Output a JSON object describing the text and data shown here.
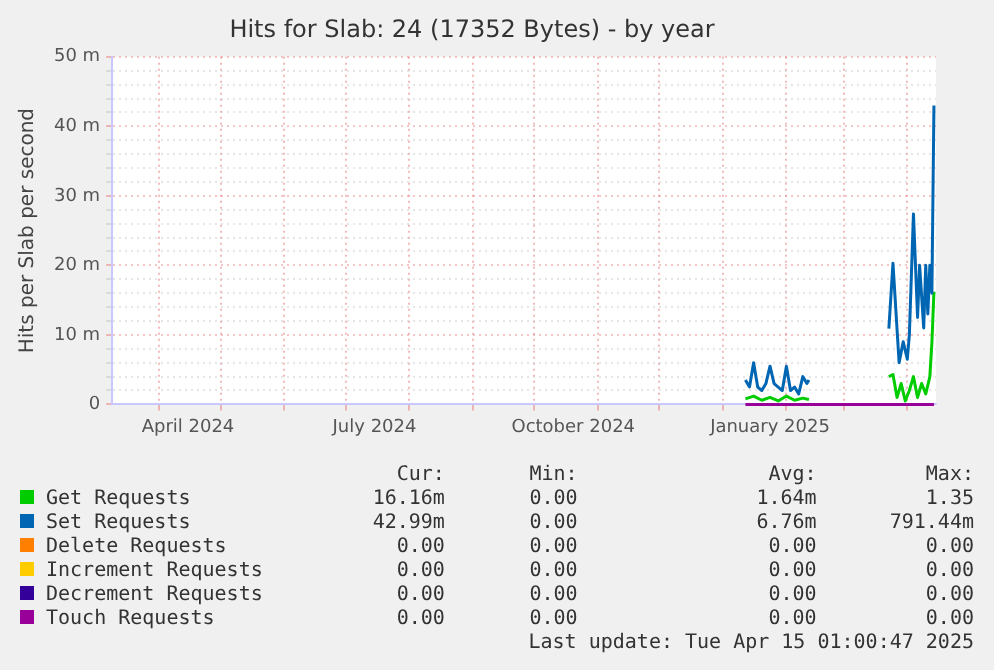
{
  "chart_data": {
    "type": "line",
    "title": "Hits for Slab: 24 (17352 Bytes) - by year",
    "ylabel": "Hits per Slab per second",
    "xlim": [
      "2024-03-09",
      "2025-04-15"
    ],
    "xticks": [
      {
        "value": "2024-04-01",
        "label": null
      },
      {
        "value": "2024-04-15",
        "label": "April 2024"
      },
      {
        "value": "2024-05-01",
        "label": null
      },
      {
        "value": "2024-06-01",
        "label": null
      },
      {
        "value": "2024-07-01",
        "label": null
      },
      {
        "value": "2024-07-15",
        "label": "July 2024"
      },
      {
        "value": "2024-08-01",
        "label": null
      },
      {
        "value": "2024-09-01",
        "label": null
      },
      {
        "value": "2024-10-01",
        "label": null
      },
      {
        "value": "2024-10-20",
        "label": "October 2024"
      },
      {
        "value": "2024-11-01",
        "label": null
      },
      {
        "value": "2024-12-01",
        "label": null
      },
      {
        "value": "2025-01-01",
        "label": null
      },
      {
        "value": "2025-01-24",
        "label": "January 2025"
      },
      {
        "value": "2025-02-01",
        "label": null
      },
      {
        "value": "2025-03-01",
        "label": null
      },
      {
        "value": "2025-04-01",
        "label": null
      }
    ],
    "ylim": [
      0,
      50
    ],
    "yticks": [
      0,
      {
        "value": 2,
        "label": null
      },
      {
        "value": 4,
        "label": null
      },
      {
        "value": 6,
        "label": null
      },
      {
        "value": 8,
        "label": null
      },
      {
        "value": 10,
        "label": "10 m"
      },
      {
        "value": 12,
        "label": null
      },
      {
        "value": 14,
        "label": null
      },
      {
        "value": 16,
        "label": null
      },
      {
        "value": 18,
        "label": null
      },
      {
        "value": 20,
        "label": "20 m"
      },
      {
        "value": 22,
        "label": null
      },
      {
        "value": 24,
        "label": null
      },
      {
        "value": 26,
        "label": null
      },
      {
        "value": 28,
        "label": null
      },
      {
        "value": 30,
        "label": "30 m"
      },
      {
        "value": 32,
        "label": null
      },
      {
        "value": 34,
        "label": null
      },
      {
        "value": 36,
        "label": null
      },
      {
        "value": 38,
        "label": null
      },
      {
        "value": 40,
        "label": "40 m"
      },
      {
        "value": 42,
        "label": null
      },
      {
        "value": 44,
        "label": null
      },
      {
        "value": 46,
        "label": null
      },
      {
        "value": 48,
        "label": null
      },
      {
        "value": 50,
        "label": "50 m"
      }
    ],
    "grid": true,
    "legend": "bottom",
    "series": [
      {
        "name": "Get Requests",
        "color": "#00cc00",
        "x": [
          "2025-01-12",
          "2025-01-16",
          "2025-01-20",
          "2025-01-24",
          "2025-01-28",
          "2025-02-01",
          "2025-02-05",
          "2025-02-09",
          "2025-02-12",
          "2025-02-13",
          "2025-03-23",
          "2025-03-25",
          "2025-03-27",
          "2025-03-29",
          "2025-03-31",
          "2025-04-02",
          "2025-04-04",
          "2025-04-06",
          "2025-04-08",
          "2025-04-10",
          "2025-04-12",
          "2025-04-13",
          "2025-04-14"
        ],
        "values": [
          0.8,
          1.2,
          0.6,
          1,
          0.5,
          1.2,
          0.6,
          0.9,
          0.7,
          null,
          4,
          4.3,
          1,
          3,
          0.5,
          2,
          4,
          1,
          3,
          1.5,
          4,
          8.9,
          16.2
        ]
      },
      {
        "name": "Set Requests",
        "color": "#0066b3",
        "x": [
          "2025-01-12",
          "2025-01-14",
          "2025-01-16",
          "2025-01-18",
          "2025-01-20",
          "2025-01-22",
          "2025-01-24",
          "2025-01-26",
          "2025-01-28",
          "2025-01-30",
          "2025-02-01",
          "2025-02-03",
          "2025-02-05",
          "2025-02-07",
          "2025-02-09",
          "2025-02-11",
          "2025-02-12",
          "2025-02-13",
          "2025-03-23",
          "2025-03-25",
          "2025-03-28",
          "2025-03-30",
          "2025-04-01",
          "2025-04-02",
          "2025-04-04",
          "2025-04-06",
          "2025-04-07",
          "2025-04-09",
          "2025-04-10",
          "2025-04-11",
          "2025-04-12",
          "2025-04-13",
          "2025-04-14"
        ],
        "values": [
          3.5,
          2.5,
          6,
          2.5,
          2,
          3,
          5.5,
          3,
          2.5,
          2,
          5.5,
          2,
          2.5,
          1.5,
          4,
          3,
          3.5,
          null,
          10.9,
          20.3,
          6,
          9,
          6.5,
          10,
          27.4,
          12.5,
          20,
          11,
          20,
          13,
          20,
          16,
          43
        ]
      },
      {
        "name": "Delete Requests",
        "color": "#ff8000"
      },
      {
        "name": "Increment Requests",
        "color": "#ffcc00"
      },
      {
        "name": "Decrement Requests",
        "color": "#330099"
      },
      {
        "name": "Touch Requests",
        "color": "#990099",
        "x": [
          "2025-01-12",
          "2025-04-14"
        ],
        "values": [
          0,
          0
        ]
      }
    ],
    "annotations": [
      "Cur:",
      "Min:",
      "Avg:",
      "Max:",
      "16.16m",
      "0.00",
      "1.64m",
      "1.35",
      "42.99m",
      "0.00",
      "6.76m",
      "791.44m",
      "0.00",
      "0.00",
      "0.00",
      "0.00",
      "0.00",
      "0.00",
      "0.00",
      "0.00",
      "0.00",
      "0.00",
      "0.00",
      "0.00",
      "0.00",
      "0.00",
      "0.00",
      "0.00",
      "Last update: Tue Apr 15 01:00:47 2025"
    ]
  }
}
